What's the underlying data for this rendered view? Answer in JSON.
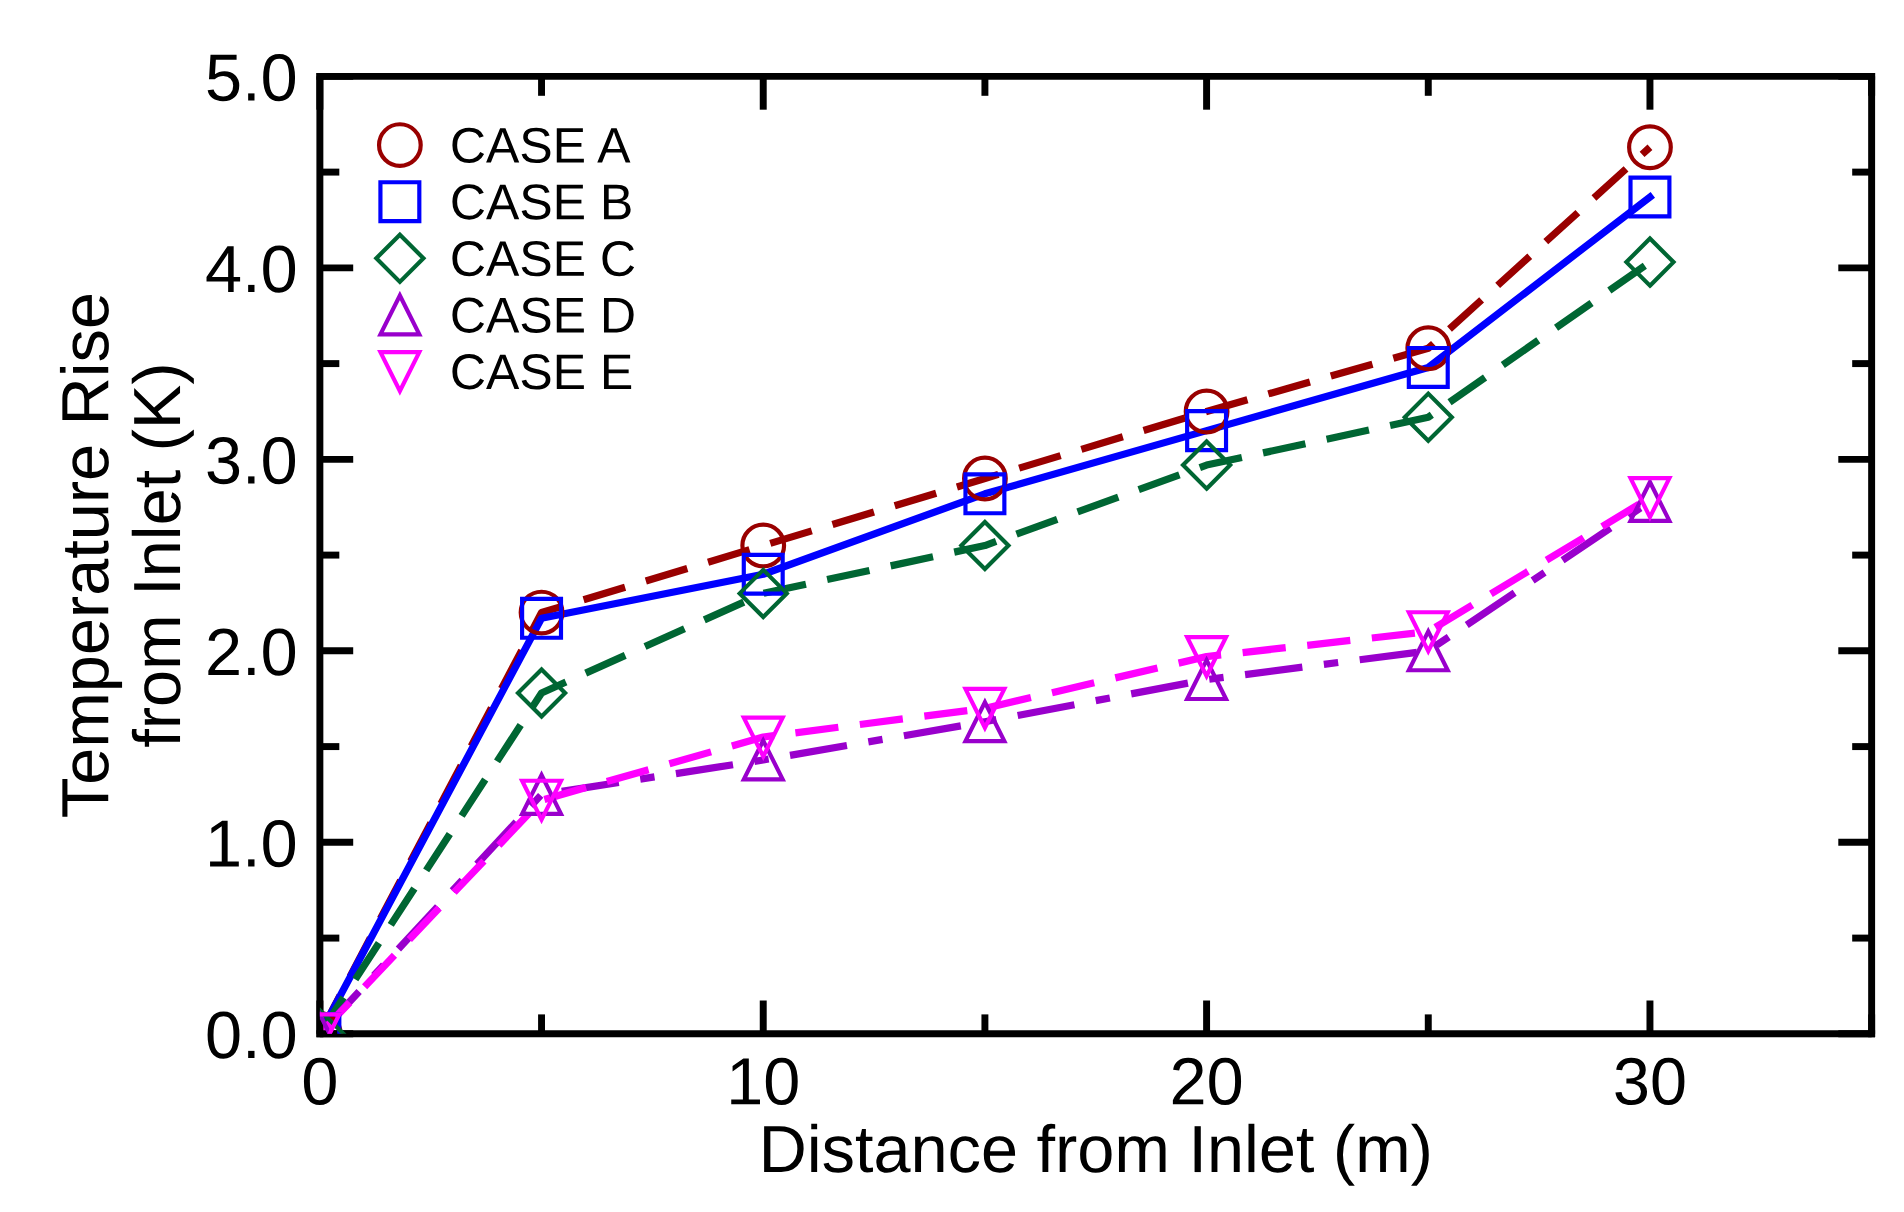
{
  "chart_data": {
    "type": "line",
    "xlabel": "Distance from Inlet (m)",
    "ylabel": "Temperature Rise\nfrom Inlet (K)",
    "x": [
      0,
      5,
      10,
      15,
      20,
      25,
      30
    ],
    "series": [
      {
        "name": "CASE A",
        "color": "#990000",
        "marker": "circle",
        "line_style": "dashed",
        "values": [
          0,
          2.2,
          2.55,
          2.9,
          3.25,
          3.58,
          4.63
        ]
      },
      {
        "name": "CASE B",
        "color": "#0000ff",
        "marker": "square",
        "line_style": "solid",
        "values": [
          0,
          2.17,
          2.4,
          2.82,
          3.15,
          3.48,
          4.37
        ]
      },
      {
        "name": "CASE C",
        "color": "#006633",
        "marker": "diamond",
        "line_style": "dashed",
        "values": [
          0,
          1.78,
          2.3,
          2.55,
          2.97,
          3.22,
          4.03
        ]
      },
      {
        "name": "CASE D",
        "color": "#9900cc",
        "marker": "triangle",
        "line_style": "dashdot",
        "values": [
          0,
          1.25,
          1.43,
          1.63,
          1.85,
          2.0,
          2.78
        ]
      },
      {
        "name": "CASE E",
        "color": "#ff00ff",
        "marker": "triangle_down",
        "line_style": "dashed",
        "values": [
          0,
          1.22,
          1.55,
          1.7,
          1.97,
          2.1,
          2.8
        ]
      }
    ],
    "xlim": [
      0,
      35
    ],
    "xticks": [
      0,
      10,
      20,
      30
    ],
    "ylim": [
      0,
      5
    ],
    "yticks": [
      {
        "value": 0,
        "label": "0.0"
      },
      {
        "value": 1,
        "label": "1.0"
      },
      {
        "value": 2,
        "label": "2.0"
      },
      {
        "value": 3,
        "label": "3.0"
      },
      {
        "value": 4,
        "label": "4.0"
      },
      {
        "value": 5,
        "label": "5.0"
      }
    ],
    "grid": false,
    "legend": "top left"
  }
}
